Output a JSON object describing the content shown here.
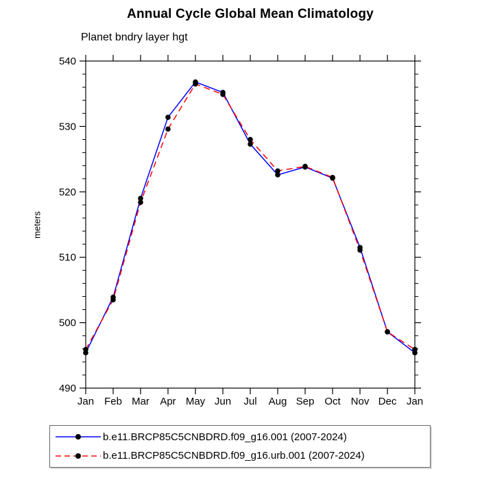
{
  "chart_data": {
    "type": "line",
    "title": "Annual Cycle Global Mean Climatology",
    "subtitle": "Planet bndry layer hgt",
    "ylabel": "meters",
    "categories": [
      "Jan",
      "Feb",
      "Mar",
      "Apr",
      "May",
      "Jun",
      "Jul",
      "Aug",
      "Sep",
      "Oct",
      "Nov",
      "Dec",
      "Jan"
    ],
    "ylim": [
      490,
      540
    ],
    "y_major_ticks": [
      490,
      500,
      510,
      520,
      530,
      540
    ],
    "y_minor_step": 2,
    "grid": false,
    "legend_position": "bottom",
    "marker": "filled-circle",
    "marker_color": "#000000",
    "axis_color": "#000000",
    "series": [
      {
        "name": "b.e11.BRCP85C5CNBDRD.f09_g16.001 (2007-2024)",
        "color": "#0000ff",
        "style": "solid",
        "values": [
          495.4,
          503.9,
          519.0,
          531.4,
          536.8,
          535.2,
          527.3,
          522.6,
          523.8,
          522.1,
          511.5,
          498.6,
          495.4
        ]
      },
      {
        "name": "b.e11.BRCP85C5CNBDRD.f09_g16.urb.001 (2007-2024)",
        "color": "#ff0000",
        "style": "dashed",
        "values": [
          495.9,
          503.5,
          518.4,
          529.6,
          536.5,
          534.9,
          528.0,
          523.2,
          523.9,
          522.2,
          511.1,
          498.6,
          495.9
        ]
      }
    ]
  }
}
